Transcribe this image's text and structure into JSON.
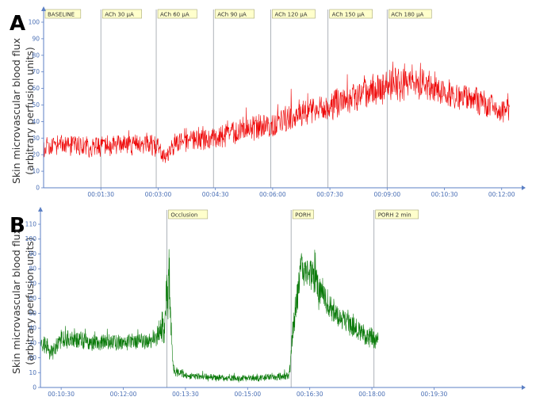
{
  "chart_data": [
    {
      "type": "line",
      "panel": "A",
      "ylabel": [
        "Skin microvascular blood flux",
        "(arbitrary perfusion units)"
      ],
      "ylim": [
        0,
        100
      ],
      "yticks": [
        0,
        10,
        20,
        30,
        40,
        50,
        60,
        70,
        80,
        90,
        100
      ],
      "xlim_min": [
        0.0,
        12.4
      ],
      "xticks": [
        "00:01:30",
        "00:03:00",
        "00:04:30",
        "00:06:00",
        "00:07:30",
        "00:09:00",
        "00:10:30",
        "00:12:00"
      ],
      "xtick_min": [
        1.5,
        3.0,
        4.5,
        6.0,
        7.5,
        9.0,
        10.5,
        12.0
      ],
      "grid": false,
      "events": [
        {
          "label": "BASELINE",
          "t_min": 0.0
        },
        {
          "label": "ACh 30 μA",
          "t_min": 1.5
        },
        {
          "label": "ACh 60 μA",
          "t_min": 2.95
        },
        {
          "label": "ACh 90 μA",
          "t_min": 4.45
        },
        {
          "label": "ACh 120 μA",
          "t_min": 5.95
        },
        {
          "label": "ACh 150 μA",
          "t_min": 7.45
        },
        {
          "label": "ACh 180 μA",
          "t_min": 9.0
        }
      ],
      "series": [
        {
          "color": "#ee0000",
          "x_min": [
            0.0,
            0.5,
            1.0,
            1.5,
            2.0,
            2.5,
            3.0,
            3.2,
            3.5,
            4.0,
            4.5,
            4.8,
            5.0,
            5.5,
            6.0,
            6.5,
            7.0,
            7.5,
            8.0,
            8.5,
            9.0,
            9.5,
            10.0,
            10.5,
            11.0,
            11.5,
            12.0,
            12.2
          ],
          "mean": [
            25,
            26,
            25,
            24,
            26,
            27,
            25,
            18,
            28,
            30,
            29,
            33,
            34,
            36,
            37,
            42,
            45,
            50,
            54,
            58,
            62,
            65,
            62,
            57,
            54,
            52,
            48,
            45
          ],
          "range": [
            8,
            8,
            8,
            8,
            8,
            8,
            8,
            6,
            8,
            9,
            9,
            9,
            9,
            10,
            10,
            10,
            11,
            11,
            11,
            12,
            12,
            12,
            12,
            11,
            11,
            11,
            10,
            10
          ]
        }
      ]
    },
    {
      "type": "line",
      "panel": "B",
      "ylabel": [
        "Skin microvascular blood flux",
        "(arbitrary perfusion units)"
      ],
      "ylim": [
        0,
        110
      ],
      "yticks": [
        0,
        10,
        20,
        30,
        40,
        50,
        60,
        70,
        80,
        90,
        100,
        110
      ],
      "xlim_min": [
        10.0,
        21.5
      ],
      "xticks": [
        "00:10:30",
        "00:12:00",
        "00:13:30",
        "00:15:00",
        "00:16:30",
        "00:18:00",
        "00:19:30"
      ],
      "xtick_min": [
        10.5,
        12.0,
        13.5,
        15.0,
        16.5,
        18.0,
        19.5
      ],
      "grid": false,
      "events": [
        {
          "label": "Occlusion",
          "t_min": 13.05
        },
        {
          "label": "PORH",
          "t_min": 16.05
        },
        {
          "label": "PORH 2 min",
          "t_min": 18.05
        }
      ],
      "series": [
        {
          "color": "#0a7a0a",
          "x_min": [
            10.0,
            10.3,
            10.5,
            11.0,
            11.5,
            12.0,
            12.5,
            12.8,
            13.0,
            13.1,
            13.2,
            13.5,
            14.0,
            14.5,
            15.0,
            15.5,
            16.0,
            16.1,
            16.3,
            16.5,
            16.8,
            17.0,
            17.5,
            18.0,
            18.15
          ],
          "mean": [
            30,
            24,
            33,
            32,
            30,
            31,
            31,
            33,
            45,
            75,
            12,
            8,
            7,
            6,
            6,
            7,
            8,
            40,
            82,
            78,
            63,
            52,
            42,
            33,
            32
          ],
          "range": [
            8,
            8,
            8,
            8,
            7,
            7,
            7,
            8,
            20,
            35,
            6,
            3,
            3,
            3,
            3,
            3,
            3,
            12,
            15,
            14,
            12,
            11,
            10,
            9,
            8
          ]
        }
      ]
    }
  ]
}
